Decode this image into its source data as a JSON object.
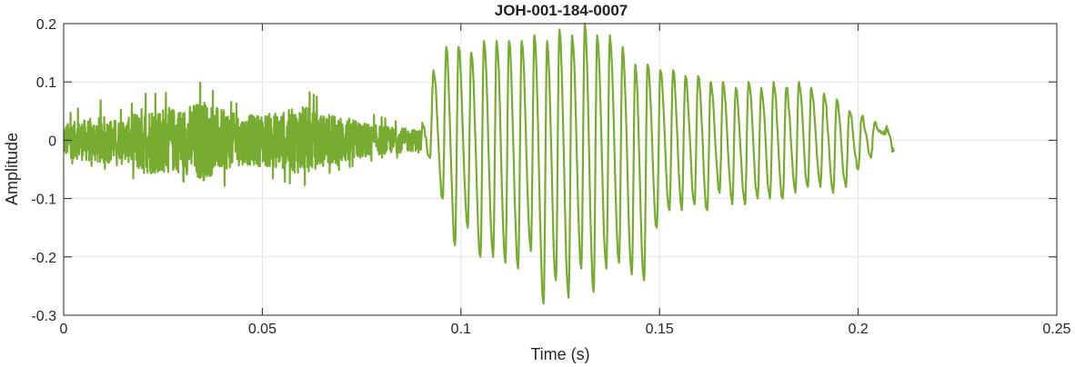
{
  "chart_data": {
    "type": "line",
    "title": "JOH-001-184-0007",
    "xlabel": "Time (s)",
    "ylabel": "Amplitude",
    "xlim": [
      0,
      0.25
    ],
    "ylim": [
      -0.3,
      0.2
    ],
    "xticks": [
      0,
      0.05,
      0.1,
      0.15,
      0.2,
      0.25
    ],
    "xtick_labels": [
      "0",
      "0.05",
      "0.1",
      "0.15",
      "0.2",
      "0.25"
    ],
    "yticks": [
      -0.3,
      -0.2,
      -0.1,
      0,
      0.1,
      0.2
    ],
    "ytick_labels": [
      "-0.3",
      "-0.2",
      "-0.1",
      "0",
      "0.1",
      "0.2"
    ],
    "grid": true,
    "series": [
      {
        "color": "#77AC30",
        "envelope": [
          {
            "t": 0.0,
            "max": 0.04,
            "min": -0.04
          },
          {
            "t": 0.005,
            "max": 0.06,
            "min": -0.04
          },
          {
            "t": 0.01,
            "max": 0.07,
            "min": -0.05
          },
          {
            "t": 0.015,
            "max": 0.05,
            "min": -0.04
          },
          {
            "t": 0.02,
            "max": 0.08,
            "min": -0.09
          },
          {
            "t": 0.025,
            "max": 0.08,
            "min": -0.08
          },
          {
            "t": 0.03,
            "max": 0.09,
            "min": -0.07
          },
          {
            "t": 0.035,
            "max": 0.1,
            "min": -0.1
          },
          {
            "t": 0.04,
            "max": 0.07,
            "min": -0.08
          },
          {
            "t": 0.045,
            "max": 0.06,
            "min": -0.06
          },
          {
            "t": 0.05,
            "max": 0.07,
            "min": -0.06
          },
          {
            "t": 0.055,
            "max": 0.07,
            "min": -0.07
          },
          {
            "t": 0.06,
            "max": 0.09,
            "min": -0.08
          },
          {
            "t": 0.065,
            "max": 0.07,
            "min": -0.06
          },
          {
            "t": 0.07,
            "max": 0.07,
            "min": -0.05
          },
          {
            "t": 0.075,
            "max": 0.05,
            "min": -0.04
          },
          {
            "t": 0.08,
            "max": 0.04,
            "min": -0.03
          },
          {
            "t": 0.085,
            "max": 0.03,
            "min": -0.03
          },
          {
            "t": 0.09,
            "max": 0.03,
            "min": -0.02
          }
        ],
        "peaks": [
          [
            0.0903,
            0.03
          ],
          [
            0.0922,
            -0.03
          ],
          [
            0.0931,
            0.12
          ],
          [
            0.0954,
            -0.1
          ],
          [
            0.0963,
            0.16
          ],
          [
            0.0985,
            -0.18
          ],
          [
            0.0994,
            0.16
          ],
          [
            0.1017,
            -0.15
          ],
          [
            0.1026,
            0.15
          ],
          [
            0.1049,
            -0.2
          ],
          [
            0.1058,
            0.17
          ],
          [
            0.1081,
            -0.2
          ],
          [
            0.109,
            0.17
          ],
          [
            0.1112,
            -0.21
          ],
          [
            0.1121,
            0.17
          ],
          [
            0.1144,
            -0.22
          ],
          [
            0.1153,
            0.17
          ],
          [
            0.1176,
            -0.19
          ],
          [
            0.1185,
            0.18
          ],
          [
            0.1208,
            -0.28
          ],
          [
            0.1217,
            0.17
          ],
          [
            0.1239,
            -0.24
          ],
          [
            0.1248,
            0.19
          ],
          [
            0.1271,
            -0.27
          ],
          [
            0.128,
            0.18
          ],
          [
            0.1303,
            -0.22
          ],
          [
            0.1312,
            0.2
          ],
          [
            0.1334,
            -0.26
          ],
          [
            0.1343,
            0.18
          ],
          [
            0.1366,
            -0.22
          ],
          [
            0.1375,
            0.18
          ],
          [
            0.1398,
            -0.21
          ],
          [
            0.1407,
            0.16
          ],
          [
            0.143,
            -0.23
          ],
          [
            0.1439,
            0.13
          ],
          [
            0.1461,
            -0.24
          ],
          [
            0.147,
            0.13
          ],
          [
            0.1493,
            -0.15
          ],
          [
            0.1502,
            0.12
          ],
          [
            0.1525,
            -0.12
          ],
          [
            0.1534,
            0.12
          ],
          [
            0.1556,
            -0.12
          ],
          [
            0.1565,
            0.11
          ],
          [
            0.1588,
            -0.11
          ],
          [
            0.1597,
            0.11
          ],
          [
            0.162,
            -0.12
          ],
          [
            0.1629,
            0.1
          ],
          [
            0.1651,
            -0.09
          ],
          [
            0.166,
            0.1
          ],
          [
            0.1683,
            -0.11
          ],
          [
            0.1692,
            0.09
          ],
          [
            0.1715,
            -0.11
          ],
          [
            0.1724,
            0.1
          ],
          [
            0.1747,
            -0.1
          ],
          [
            0.1756,
            0.09
          ],
          [
            0.1778,
            -0.1
          ],
          [
            0.1787,
            0.1
          ],
          [
            0.181,
            -0.1
          ],
          [
            0.1819,
            0.09
          ],
          [
            0.1842,
            -0.09
          ],
          [
            0.1851,
            0.1
          ],
          [
            0.1873,
            -0.08
          ],
          [
            0.1882,
            0.09
          ],
          [
            0.1905,
            -0.08
          ],
          [
            0.1914,
            0.08
          ],
          [
            0.1937,
            -0.09
          ],
          [
            0.1946,
            0.07
          ],
          [
            0.1969,
            -0.08
          ],
          [
            0.1978,
            0.05
          ],
          [
            0.2,
            -0.05
          ],
          [
            0.2009,
            0.04
          ],
          [
            0.2032,
            -0.03
          ],
          [
            0.2041,
            0.03
          ],
          [
            0.2064,
            0.01
          ],
          [
            0.2073,
            0.02
          ],
          [
            0.209,
            -0.02
          ]
        ]
      }
    ]
  }
}
